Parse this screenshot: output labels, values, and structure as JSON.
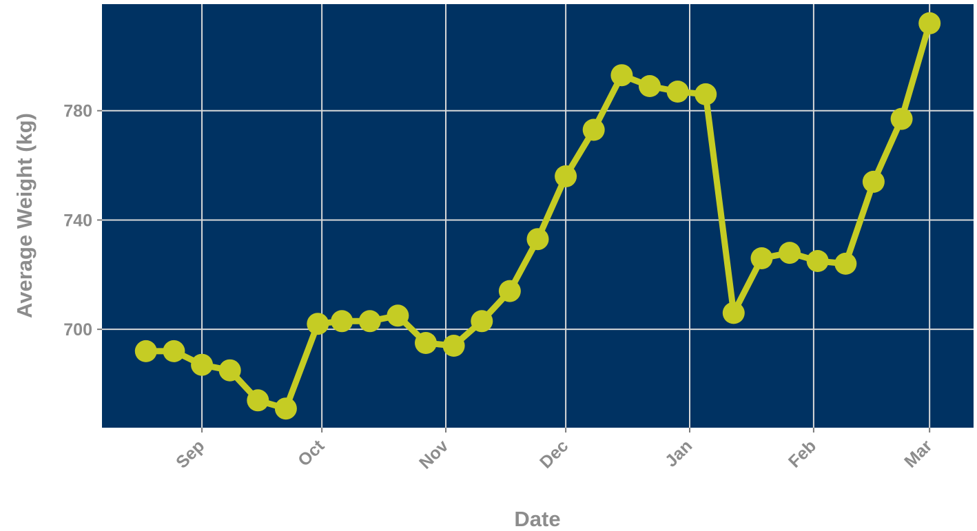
{
  "chart_data": {
    "type": "line",
    "title": "",
    "xlabel": "Date",
    "ylabel": "Average Weight (kg)",
    "x_tick_labels": [
      "Sep",
      "Oct",
      "Nov",
      "Dec",
      "Jan",
      "Feb",
      "Mar"
    ],
    "x_tick_dates": [
      "2019-09-01",
      "2019-10-01",
      "2019-11-01",
      "2019-12-01",
      "2020-01-01",
      "2020-02-01",
      "2020-03-01"
    ],
    "y_ticks": [
      700,
      740,
      780
    ],
    "xlim": [
      "2019-08-07",
      "2020-03-12"
    ],
    "ylim": [
      664,
      819
    ],
    "grid": true,
    "colors": {
      "panel": "#003262",
      "grid": "#d9d9d9",
      "line": "#c5cc24",
      "text": "#8c8c8c"
    },
    "series": [
      {
        "x": [
          "2019-08-18",
          "2019-08-25",
          "2019-09-01",
          "2019-09-08",
          "2019-09-15",
          "2019-09-22",
          "2019-09-30",
          "2019-10-06",
          "2019-10-13",
          "2019-10-20",
          "2019-10-27",
          "2019-11-03",
          "2019-11-10",
          "2019-11-17",
          "2019-11-24",
          "2019-12-01",
          "2019-12-08",
          "2019-12-15",
          "2019-12-22",
          "2019-12-29",
          "2020-01-05",
          "2020-01-12",
          "2020-01-19",
          "2020-01-26",
          "2020-02-02",
          "2020-02-09",
          "2020-02-16",
          "2020-02-23",
          "2020-03-01"
        ],
        "values": [
          692,
          692,
          687,
          685,
          674,
          671,
          702,
          703,
          703,
          705,
          695,
          694,
          703,
          714,
          733,
          756,
          773,
          793,
          789,
          787,
          786,
          706,
          726,
          728,
          725,
          724,
          754,
          777,
          812
        ]
      }
    ]
  }
}
